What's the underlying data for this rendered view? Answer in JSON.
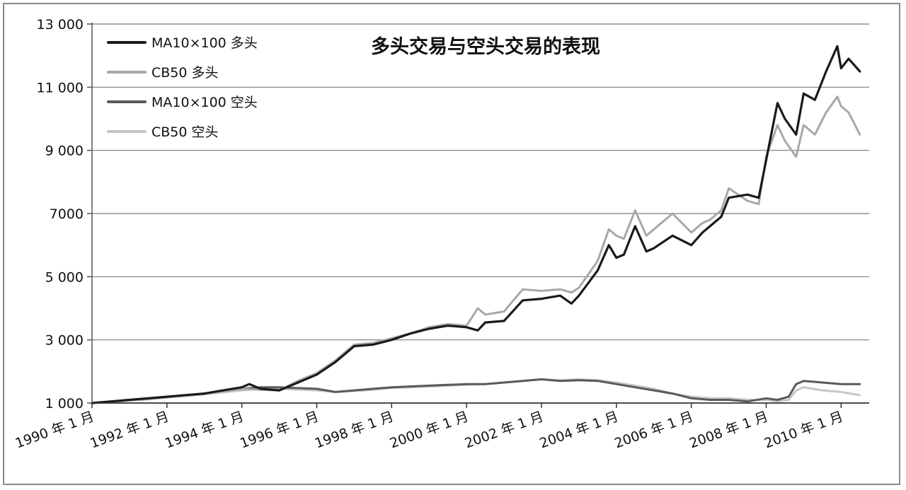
{
  "chart_data": {
    "type": "line",
    "title": "多头交易与空头交易的表现",
    "xlabel": "",
    "ylabel": "",
    "ylim": [
      1000,
      13000
    ],
    "yticks": [
      1000,
      3000,
      5000,
      7000,
      9000,
      11000,
      13000
    ],
    "ytick_labels": [
      "1 000",
      "3 000",
      "5 000",
      "7000",
      "9 000",
      "11 000",
      "13 000"
    ],
    "xlim": [
      1990.0,
      2010.75
    ],
    "xticks": [
      1990,
      1992,
      1994,
      1996,
      1998,
      2000,
      2002,
      2004,
      2006,
      2008,
      2010
    ],
    "xtick_labels": [
      "1990 年 1 月",
      "1992 年 1 月",
      "1994 年 1 月",
      "1996 年 1 月",
      "1998 年 1 月",
      "2000 年 1 月",
      "2002 年 1 月",
      "2004 年 1 月",
      "2006 年 1 月",
      "2008 年 1 月",
      "2010 年 1 月"
    ],
    "grid": "horizontal",
    "legend_position": "top-left",
    "series": [
      {
        "name": "MA10×100 多头",
        "color": "#1a1a1a",
        "x": [
          1990.0,
          1990.5,
          1991.0,
          1991.5,
          1992.0,
          1992.5,
          1993.0,
          1993.5,
          1994.0,
          1994.2,
          1994.5,
          1995.0,
          1995.5,
          1996.0,
          1996.5,
          1997.0,
          1997.5,
          1998.0,
          1998.5,
          1999.0,
          1999.5,
          2000.0,
          2000.3,
          2000.5,
          2001.0,
          2001.5,
          2002.0,
          2002.5,
          2002.8,
          2003.0,
          2003.5,
          2003.8,
          2004.0,
          2004.2,
          2004.5,
          2004.8,
          2005.0,
          2005.5,
          2006.0,
          2006.3,
          2006.5,
          2006.8,
          2007.0,
          2007.5,
          2007.8,
          2008.0,
          2008.3,
          2008.5,
          2008.8,
          2009.0,
          2009.3,
          2009.6,
          2009.9,
          2010.0,
          2010.2,
          2010.5
        ],
        "values": [
          1000,
          1050,
          1100,
          1150,
          1200,
          1250,
          1300,
          1400,
          1500,
          1600,
          1450,
          1400,
          1650,
          1900,
          2300,
          2800,
          2850,
          3000,
          3200,
          3350,
          3450,
          3400,
          3300,
          3550,
          3600,
          4250,
          4300,
          4400,
          4150,
          4400,
          5200,
          6000,
          5600,
          5700,
          6600,
          5800,
          5900,
          6300,
          6000,
          6400,
          6600,
          6900,
          7500,
          7600,
          7500,
          8700,
          10500,
          10000,
          9500,
          10800,
          10600,
          11500,
          12300,
          11600,
          11900,
          11500
        ]
      },
      {
        "name": "CB50 多头",
        "color": "#a8a8a8",
        "x": [
          1990.0,
          1990.5,
          1991.0,
          1991.5,
          1992.0,
          1992.5,
          1993.0,
          1993.5,
          1994.0,
          1994.5,
          1995.0,
          1995.5,
          1996.0,
          1996.5,
          1997.0,
          1997.5,
          1998.0,
          1998.5,
          1999.0,
          1999.5,
          2000.0,
          2000.3,
          2000.5,
          2001.0,
          2001.5,
          2002.0,
          2002.5,
          2002.8,
          2003.0,
          2003.5,
          2003.8,
          2004.0,
          2004.2,
          2004.5,
          2004.8,
          2005.0,
          2005.5,
          2006.0,
          2006.3,
          2006.5,
          2006.8,
          2007.0,
          2007.5,
          2007.8,
          2008.0,
          2008.3,
          2008.5,
          2008.8,
          2009.0,
          2009.3,
          2009.6,
          2009.9,
          2010.0,
          2010.2,
          2010.5
        ],
        "values": [
          1000,
          1030,
          1080,
          1120,
          1180,
          1230,
          1280,
          1380,
          1450,
          1420,
          1400,
          1700,
          1950,
          2350,
          2850,
          2900,
          3050,
          3200,
          3400,
          3500,
          3450,
          4000,
          3800,
          3900,
          4600,
          4550,
          4600,
          4500,
          4650,
          5500,
          6500,
          6300,
          6200,
          7100,
          6300,
          6500,
          7000,
          6400,
          6700,
          6800,
          7100,
          7800,
          7400,
          7300,
          8800,
          9800,
          9300,
          8800,
          9800,
          9500,
          10200,
          10700,
          10400,
          10200,
          9500
        ]
      },
      {
        "name": "MA10×100 空头",
        "color": "#5a5a5a",
        "x": [
          1990.0,
          1991.0,
          1992.0,
          1993.0,
          1994.0,
          1994.5,
          1995.0,
          1996.0,
          1996.5,
          1997.0,
          1997.5,
          1998.0,
          1999.0,
          2000.0,
          2000.5,
          2001.0,
          2001.5,
          2002.0,
          2002.5,
          2003.0,
          2003.5,
          2004.0,
          2004.5,
          2005.0,
          2005.5,
          2006.0,
          2006.5,
          2007.0,
          2007.5,
          2008.0,
          2008.3,
          2008.6,
          2008.8,
          2009.0,
          2009.5,
          2010.0,
          2010.5
        ],
        "values": [
          1000,
          1100,
          1200,
          1300,
          1450,
          1500,
          1500,
          1450,
          1350,
          1400,
          1450,
          1500,
          1550,
          1600,
          1600,
          1650,
          1700,
          1750,
          1700,
          1720,
          1700,
          1600,
          1500,
          1400,
          1300,
          1150,
          1100,
          1100,
          1050,
          1150,
          1100,
          1200,
          1600,
          1700,
          1650,
          1600,
          1600
        ]
      },
      {
        "name": "CB50 空头",
        "color": "#c6c6c6",
        "x": [
          1990.0,
          1991.0,
          1992.0,
          1993.0,
          1994.0,
          1994.5,
          1995.0,
          1996.0,
          1996.5,
          1997.0,
          1997.5,
          1998.0,
          1999.0,
          2000.0,
          2000.5,
          2001.0,
          2001.5,
          2002.0,
          2002.5,
          2003.0,
          2003.5,
          2004.0,
          2004.5,
          2005.0,
          2005.5,
          2006.0,
          2006.5,
          2007.0,
          2007.5,
          2008.0,
          2008.3,
          2008.6,
          2008.8,
          2009.0,
          2009.5,
          2010.0,
          2010.5
        ],
        "values": [
          1000,
          1080,
          1180,
          1280,
          1400,
          1450,
          1450,
          1400,
          1350,
          1380,
          1420,
          1480,
          1520,
          1580,
          1600,
          1650,
          1700,
          1750,
          1720,
          1750,
          1720,
          1650,
          1550,
          1450,
          1300,
          1200,
          1150,
          1150,
          1100,
          1100,
          1050,
          1100,
          1400,
          1500,
          1400,
          1350,
          1250
        ]
      }
    ]
  }
}
